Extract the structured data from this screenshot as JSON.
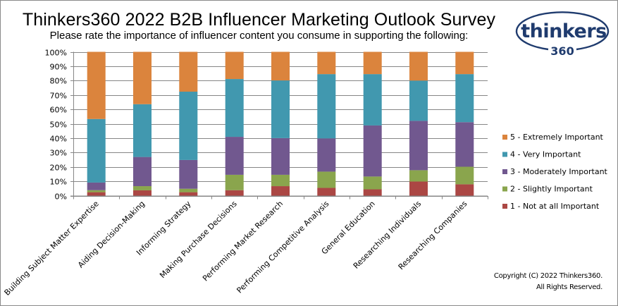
{
  "header": {
    "title": "Thinkers360 2022 B2B Influencer Marketing Outlook Survey",
    "subtitle": "Please rate the importance of influencer  content you consume in supporting the following:"
  },
  "logo": {
    "word": "thinkers",
    "number": "360",
    "color": "#1f3b6e"
  },
  "footer": {
    "copyright_line1": "Copyright (C) 2022 Thinkers360.",
    "copyright_line2": "All Rights Reserved."
  },
  "chart_data": {
    "type": "bar",
    "stacked": true,
    "percent": true,
    "title": "Thinkers360 2022 B2B Influencer Marketing Outlook Survey",
    "subtitle": "Please rate the importance of influencer  content you consume in supporting the following:",
    "xlabel": "",
    "ylabel": "",
    "ylim": [
      0,
      100
    ],
    "yticks": [
      "0%",
      "10%",
      "20%",
      "30%",
      "40%",
      "50%",
      "60%",
      "70%",
      "80%",
      "90%",
      "100%"
    ],
    "grid": true,
    "legend_position": "right",
    "categories": [
      "Building Subject Matter Expertise",
      "Aiding Decision-Making",
      "Informing Strategy",
      "Making Purchase Decisions",
      "Performing Market Research",
      "Performing Competitive Analysis",
      "General Education",
      "Researching Individuals",
      "Researching Companies"
    ],
    "series": [
      {
        "name": "1 - Not at all Important",
        "color": "#ab4744",
        "values": [
          2.4,
          3.7,
          2.4,
          3.8,
          6.6,
          5.4,
          4.4,
          9.8,
          7.9
        ]
      },
      {
        "name": "2 - Slightly Important",
        "color": "#8aa54d",
        "values": [
          1.4,
          2.9,
          2.4,
          10.7,
          7.9,
          11.3,
          8.9,
          7.9,
          12.2
        ]
      },
      {
        "name": "3 - Moderately Important",
        "color": "#71588f",
        "values": [
          5.3,
          20.3,
          20.0,
          26.4,
          25.5,
          23.1,
          35.5,
          34.3,
          31.0
        ]
      },
      {
        "name": "4 - Very Important",
        "color": "#4198af",
        "values": [
          44.2,
          36.7,
          47.5,
          40.2,
          40.1,
          44.7,
          35.7,
          28.0,
          33.4
        ]
      },
      {
        "name": "5 - Extremely Important",
        "color": "#db843d",
        "values": [
          46.7,
          36.4,
          27.7,
          18.9,
          19.9,
          15.5,
          15.5,
          20.0,
          15.5
        ]
      }
    ],
    "legend_order": [
      4,
      3,
      2,
      1,
      0
    ]
  }
}
